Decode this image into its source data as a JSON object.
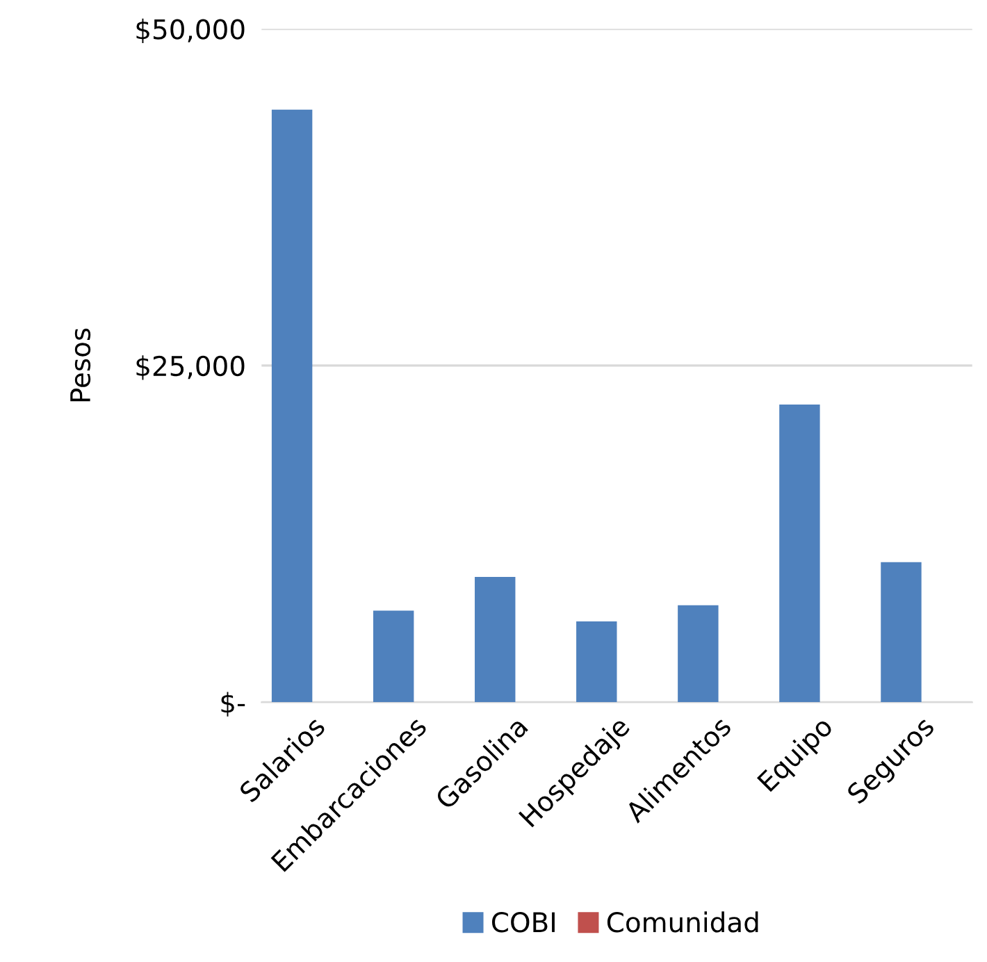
{
  "chart_data": {
    "type": "bar",
    "ylabel": "Pesos",
    "categories": [
      "Salarios",
      "Embarcaciones",
      "Gasolina",
      "Hospedaje",
      "Alimentos",
      "Equipo",
      "Seguros"
    ],
    "series": [
      {
        "name": "COBI",
        "color": "#4f81bd",
        "values": [
          44000,
          6800,
          9300,
          6000,
          7200,
          22100,
          10400
        ]
      },
      {
        "name": "Comunidad",
        "color": "#c0504d",
        "values": [
          0,
          0,
          0,
          0,
          0,
          0,
          0
        ]
      }
    ],
    "ylim": [
      0,
      50000
    ],
    "yticks": [
      {
        "value": 0,
        "label": "$-"
      },
      {
        "value": 25000,
        "label": "$25,000"
      },
      {
        "value": 50000,
        "label": "$50,000"
      }
    ],
    "grid": "y",
    "legend": "bottom"
  }
}
